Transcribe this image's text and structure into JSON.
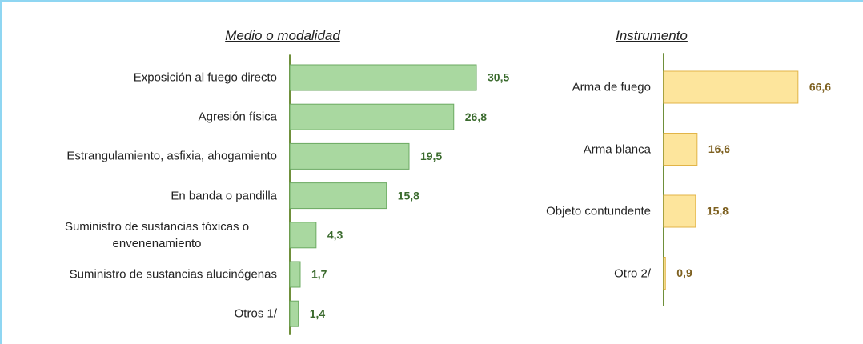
{
  "chart_data": [
    {
      "type": "bar",
      "orientation": "horizontal",
      "title": "Medio o modalidad",
      "color": "#a9d8a0",
      "categories": [
        "Exposición al fuego directo",
        "Agresión física",
        "Estrangulamiento, asfixia, ahogamiento",
        "En banda o pandilla",
        "Suministro de sustancias tóxicas o envenenamiento",
        "Suministro de sustancias alucinógenas",
        "Otros 1/"
      ],
      "values": [
        30.5,
        26.8,
        19.5,
        15.8,
        4.3,
        1.7,
        1.4
      ],
      "value_labels": [
        "30,5",
        "26,8",
        "19,5",
        "15,8",
        "4,3",
        "1,7",
        "1,4"
      ]
    },
    {
      "type": "bar",
      "orientation": "horizontal",
      "title": "Instrumento",
      "color": "#fde59c",
      "categories": [
        "Arma de fuego",
        "Arma blanca",
        "Objeto contundente",
        "Otro 2/"
      ],
      "values": [
        66.6,
        16.6,
        15.8,
        0.9
      ],
      "value_labels": [
        "66,6",
        "16,6",
        "15,8",
        "0,9"
      ]
    }
  ]
}
